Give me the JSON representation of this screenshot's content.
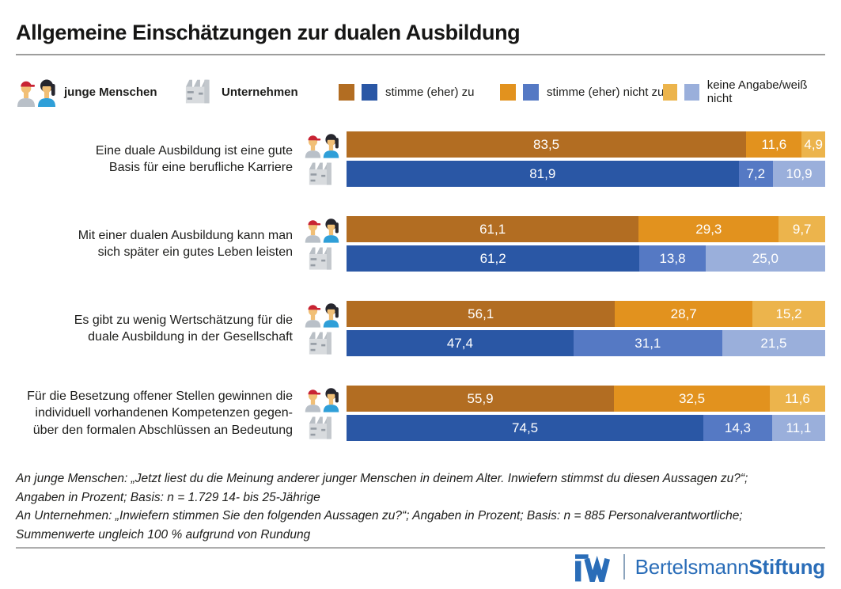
{
  "title": "Allgemeine Einschätzungen zur dualen Ausbildung",
  "legend": {
    "actors": [
      {
        "label": "junge Menschen",
        "icon": "young-people-icon"
      },
      {
        "label": "Unternehmen",
        "icon": "factory-icon"
      }
    ],
    "answers": [
      {
        "label": "stimme (eher) zu",
        "swatches": [
          "#b26d22",
          "#2a57a5"
        ]
      },
      {
        "label": "stimme (eher) nicht zu",
        "swatches": [
          "#e2921e",
          "#5579c4"
        ]
      },
      {
        "label": "keine Angabe/weiß nicht",
        "swatches": [
          "#ecb44c",
          "#9aafdb"
        ]
      }
    ]
  },
  "chart_data": {
    "type": "bar",
    "orientation": "horizontal",
    "stacked": true,
    "unit": "Prozent",
    "xlim": [
      0,
      100
    ],
    "segment_names": [
      "stimme (eher) zu",
      "stimme (eher) nicht zu",
      "keine Angabe/weiß nicht"
    ],
    "categories": [
      {
        "lines": [
          "Eine duale Ausbildung ist eine gute",
          "Basis für eine berufliche Karriere"
        ]
      },
      {
        "lines": [
          "Mit einer dualen Ausbildung kann man",
          "sich später ein gutes Leben leisten"
        ]
      },
      {
        "lines": [
          "Es gibt zu wenig Wertschätzung für die",
          "duale Ausbildung in der Gesellschaft"
        ]
      },
      {
        "lines": [
          "Für die Besetzung offener Stellen gewinnen die",
          "individuell vorhandenen Kompetenzen gegen-",
          "über den formalen Abschlüssen an Bedeutung"
        ]
      }
    ],
    "series": [
      {
        "name": "junge Menschen",
        "icon": "young-people-icon",
        "colors": [
          "#b26d22",
          "#e2921e",
          "#ecb44c"
        ],
        "values": [
          [
            83.5,
            11.6,
            4.9
          ],
          [
            61.1,
            29.3,
            9.7
          ],
          [
            56.1,
            28.7,
            15.2
          ],
          [
            55.9,
            32.5,
            11.6
          ]
        ],
        "display": [
          [
            "83,5",
            "11,6",
            "4,9"
          ],
          [
            "61,1",
            "29,3",
            "9,7"
          ],
          [
            "56,1",
            "28,7",
            "15,2"
          ],
          [
            "55,9",
            "32,5",
            "11,6"
          ]
        ]
      },
      {
        "name": "Unternehmen",
        "icon": "factory-icon",
        "colors": [
          "#2a57a5",
          "#5579c4",
          "#9aafdb"
        ],
        "values": [
          [
            81.9,
            7.2,
            10.9
          ],
          [
            61.2,
            13.8,
            25.0
          ],
          [
            47.4,
            31.1,
            21.5
          ],
          [
            74.5,
            14.3,
            11.1
          ]
        ],
        "display": [
          [
            "81,9",
            "7,2",
            "10,9"
          ],
          [
            "61,2",
            "13,8",
            "25,0"
          ],
          [
            "47,4",
            "31,1",
            "21,5"
          ],
          [
            "74,5",
            "14,3",
            "11,1"
          ]
        ]
      }
    ]
  },
  "footnotes": [
    "An junge Menschen: „Jetzt liest du die Meinung anderer junger Menschen in deinem Alter. Inwiefern stimmst du diesen Aussagen zu?“;",
    "Angaben in Prozent; Basis: n = 1.729 14- bis 25-Jährige",
    "An Unternehmen: „Inwiefern stimmen Sie den folgenden Aussagen zu?“; Angaben in Prozent; Basis: n = 885 Personalverantwortliche;",
    "Summenwerte ungleich 100 % aufgrund von Rundung"
  ],
  "footer": {
    "iw_logo": "IW",
    "brand_regular": "Bertelsmann",
    "brand_bold": "Stiftung",
    "brand_color": "#2a6db8",
    "divider_color": "#8ca4bd"
  }
}
